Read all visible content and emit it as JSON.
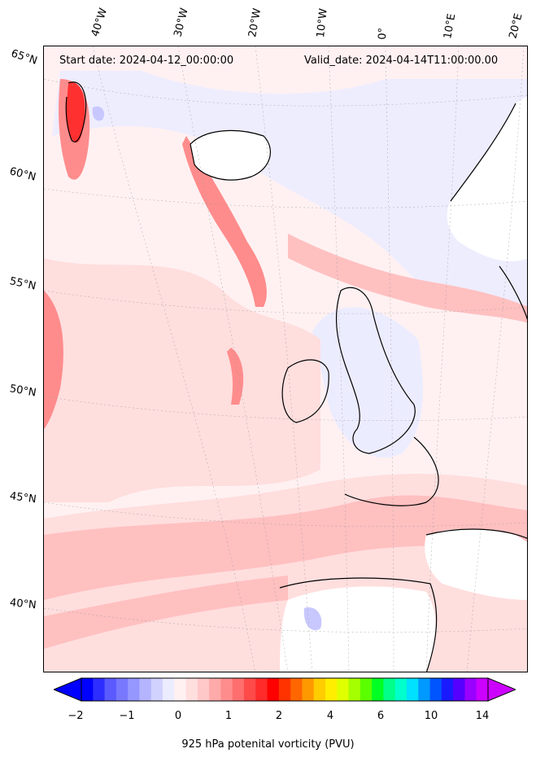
{
  "header": {
    "start_date": "Start date: 2024-04-12_00:00:00",
    "valid_date": "Valid_date: 2024-04-14T11:00:00.00"
  },
  "lon_labels": [
    "40°W",
    "30°W",
    "20°W",
    "10°W",
    "0°",
    "10°E",
    "20°E"
  ],
  "lat_labels": [
    "65°N",
    "60°N",
    "55°N",
    "50°N",
    "45°N",
    "40°N"
  ],
  "colorbar": {
    "label": "925 hPa potenital vorticity (PVU)",
    "ticks": [
      "−2",
      "−1",
      "0",
      "1",
      "2",
      "4",
      "6",
      "10",
      "14"
    ],
    "colors": [
      "#0000ff",
      "#2d2dff",
      "#5a5aff",
      "#7878ff",
      "#9696ff",
      "#b4b4ff",
      "#d2d2ff",
      "#ececff",
      "#fff1f2",
      "#ffdede",
      "#ffc8c8",
      "#ffaaaa",
      "#ff8c8c",
      "#ff6e6e",
      "#ff4a4a",
      "#ff2a2a",
      "#ff0000",
      "#ff3300",
      "#ff6600",
      "#ff9900",
      "#ffcc00",
      "#ffee00",
      "#e0ff00",
      "#a6ff00",
      "#5aff00",
      "#00ff22",
      "#00ff88",
      "#00ffcc",
      "#00e0ff",
      "#0099ff",
      "#0055ff",
      "#1a1aff",
      "#5500ff",
      "#9900ff",
      "#cc00ff"
    ],
    "under_color": "#0000ff",
    "over_color": "#cc00ff"
  },
  "map_colors": {
    "background": "#fff1f2",
    "light": "#ffdede",
    "mid": "#ffc0c0",
    "strong": "#ff8c8c",
    "intense": "#ff3030",
    "blue_light": "#ececff",
    "blue_mid": "#c8c8ff",
    "land_white": "#ffffff"
  }
}
